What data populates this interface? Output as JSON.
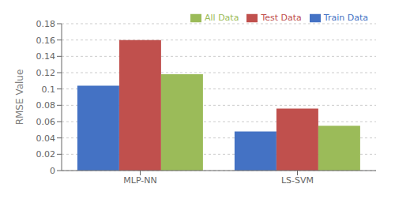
{
  "chart_data": {
    "type": "bar",
    "categories": [
      "MLP-NN",
      "LS-SVM"
    ],
    "series": [
      {
        "name": "Train Data",
        "color": "#4472C4",
        "values": [
          0.104,
          0.048
        ]
      },
      {
        "name": "Test Data",
        "color": "#C0504D",
        "values": [
          0.16,
          0.076
        ]
      },
      {
        "name": "All Data",
        "color": "#9BBB59",
        "values": [
          0.118,
          0.055
        ]
      }
    ],
    "ylabel": "RMSE Value",
    "ylim": [
      0,
      0.18
    ],
    "yticks": [
      0,
      0.02,
      0.04,
      0.06,
      0.08,
      0.1,
      0.12,
      0.14,
      0.16,
      0.18
    ],
    "grid": true,
    "legend": "upper right"
  }
}
